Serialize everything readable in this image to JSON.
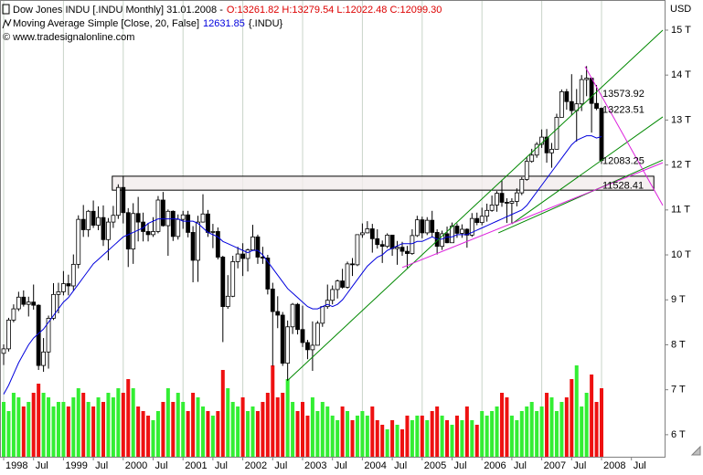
{
  "chart_data": {
    "type": "candlestick",
    "title": "Dow Jones INDU [.INDU Monthly] 31.01.2008 -",
    "title_values": "O:13261.82 H:13279.54 L:12022.48 C:12099.30",
    "source": "© www.tradesignalonline.com",
    "unit": "USD",
    "categories": [
      "1998",
      null,
      null,
      null,
      null,
      null,
      "Jul",
      null,
      null,
      null,
      null,
      null,
      "1999",
      null,
      null,
      null,
      null,
      null,
      "Jul",
      null,
      null,
      null,
      null,
      null,
      "2000",
      null,
      null,
      null,
      null,
      null,
      "Jul",
      null,
      null,
      null,
      null,
      null,
      "2001",
      null,
      null,
      null,
      null,
      null,
      "Jul",
      null,
      null,
      null,
      null,
      null,
      "2002",
      null,
      null,
      null,
      null,
      null,
      "Jul",
      null,
      null,
      null,
      null,
      null,
      "2003",
      null,
      null,
      null,
      null,
      null,
      "Jul",
      null,
      null,
      null,
      null,
      null,
      "2004",
      null,
      null,
      null,
      null,
      null,
      "Jul",
      null,
      null,
      null,
      null,
      null,
      "2005",
      null,
      null,
      null,
      null,
      null,
      "Jul",
      null,
      null,
      null,
      null,
      null,
      "2006",
      null,
      null,
      null,
      null,
      null,
      "Jul",
      null,
      null,
      null,
      null,
      null,
      "2007",
      null,
      null,
      null,
      null,
      null,
      "Jul",
      null,
      null,
      null,
      null,
      null,
      "2008",
      null,
      null,
      null,
      null,
      null,
      "Jul"
    ],
    "open": [
      7.81,
      7.91,
      8.55,
      8.8,
      9.06,
      8.9,
      8.95,
      8.88,
      7.54,
      7.84,
      8.59,
      9.12,
      9.18,
      9.36,
      9.31,
      9.79,
      10.79,
      10.56,
      10.97,
      10.66,
      10.83,
      10.34,
      10.73,
      10.88,
      11.5,
      10.94,
      10.13,
      10.92,
      10.73,
      10.52,
      10.45,
      10.52,
      11.22,
      10.65,
      10.97,
      10.41,
      10.79,
      10.89,
      10.5,
      9.88,
      10.73,
      10.91,
      10.5,
      10.52,
      9.95,
      8.85,
      9.08,
      9.85,
      10.02,
      9.92,
      10.11,
      10.4,
      9.95,
      9.93,
      9.24,
      8.74,
      8.66,
      7.59,
      8.4,
      8.9,
      8.34,
      8.05,
      7.89,
      7.99,
      8.48,
      8.85,
      8.99,
      9.23,
      9.42,
      9.28,
      9.8,
      9.78,
      10.45,
      10.49,
      10.58,
      10.36,
      10.23,
      10.19,
      10.44,
      10.14,
      10.17,
      10.08,
      10.03,
      10.43,
      10.78,
      10.49,
      10.77,
      10.5,
      10.19,
      10.47,
      10.27,
      10.64,
      10.48,
      10.57,
      10.44,
      10.81,
      10.72,
      10.86,
      10.99,
      11.11,
      11.37,
      11.17,
      11.15,
      11.19,
      11.38,
      11.68,
      12.08,
      12.22,
      12.46,
      12.62,
      12.27,
      12.35,
      13.06,
      13.63,
      13.41,
      13.21,
      13.36,
      13.9,
      13.93,
      13.37,
      13.26182,
      null,
      null,
      null,
      null,
      null,
      null
    ],
    "high": [
      8.01,
      8.6,
      8.9,
      9.18,
      9.21,
      9.07,
      9.34,
      8.9,
      8.15,
      8.65,
      9.37,
      9.38,
      9.64,
      9.56,
      10.01,
      10.88,
      11.11,
      11.0,
      11.21,
      11.08,
      11.1,
      10.82,
      11.09,
      11.57,
      11.75,
      11.04,
      11.15,
      11.29,
      10.94,
      10.71,
      10.84,
      11.31,
      11.4,
      11.01,
      10.99,
      10.9,
      10.98,
      10.98,
      10.64,
      10.87,
      11.35,
      11.0,
      10.69,
      10.61,
      9.98,
      9.55,
      9.98,
      10.18,
      10.26,
      10.14,
      10.67,
      10.45,
      10.18,
      10.0,
      9.38,
      9.08,
      8.73,
      8.54,
      8.93,
      8.93,
      8.87,
      8.11,
      8.52,
      8.53,
      8.86,
      9.34,
      9.32,
      9.45,
      9.69,
      9.85,
      9.93,
      10.45,
      10.7,
      10.75,
      10.69,
      10.57,
      10.32,
      10.48,
      10.44,
      10.31,
      10.29,
      10.2,
      10.57,
      10.87,
      10.85,
      10.84,
      10.98,
      10.57,
      10.54,
      10.63,
      10.72,
      10.7,
      10.68,
      10.59,
      10.93,
      10.94,
      11.05,
      11.14,
      11.32,
      11.42,
      11.67,
      11.26,
      11.26,
      11.48,
      11.73,
      12.17,
      12.36,
      12.51,
      12.79,
      12.8,
      12.49,
      13.14,
      13.68,
      13.69,
      14.02,
      13.69,
      14.0,
      14.2,
      13.94,
      13.78,
      13.27954,
      null,
      null,
      null,
      null,
      null,
      null
    ],
    "low": [
      7.55,
      7.85,
      8.5,
      8.75,
      8.85,
      8.63,
      8.78,
      7.44,
      7.4,
      7.47,
      8.55,
      8.7,
      9.1,
      9.1,
      9.21,
      9.7,
      10.4,
      10.4,
      10.6,
      10.55,
      10.2,
      9.88,
      10.6,
      10.8,
      10.7,
      9.73,
      9.8,
      10.3,
      10.3,
      10.3,
      10.4,
      10.48,
      10.63,
      9.98,
      10.31,
      10.34,
      10.58,
      10.39,
      9.39,
      9.4,
      10.72,
      10.4,
      10.15,
      9.9,
      8.06,
      8.8,
      9.06,
      9.7,
      9.53,
      9.63,
      10.1,
      9.8,
      9.8,
      9.12,
      7.53,
      8.37,
      7.53,
      7.2,
      8.24,
      8.23,
      7.95,
      7.68,
      7.42,
      7.99,
      8.4,
      8.8,
      8.9,
      9.03,
      9.25,
      9.25,
      9.53,
      9.75,
      10.38,
      10.48,
      10.05,
      10.14,
      9.82,
      10.15,
      9.98,
      9.78,
      9.98,
      9.71,
      10.0,
      10.4,
      10.37,
      10.44,
      10.4,
      10.01,
      10.11,
      10.26,
      10.27,
      10.38,
      10.38,
      10.16,
      10.4,
      10.66,
      10.66,
      10.74,
      10.96,
      10.96,
      11.07,
      10.71,
      10.7,
      11.08,
      11.33,
      11.65,
      12.05,
      12.16,
      12.38,
      12.05,
      11.94,
      12.35,
      13.06,
      13.23,
      13.11,
      12.52,
      13.2,
      13.53,
      12.72,
      13.22,
      12.02248,
      null,
      null,
      null,
      null,
      null,
      null
    ],
    "close": [
      7.91,
      8.55,
      8.8,
      9.06,
      8.9,
      8.95,
      8.88,
      7.54,
      7.84,
      8.59,
      9.12,
      9.18,
      9.36,
      9.31,
      9.79,
      10.79,
      10.56,
      10.97,
      10.66,
      10.83,
      10.34,
      10.73,
      10.88,
      11.5,
      10.94,
      10.13,
      10.92,
      10.73,
      10.52,
      10.45,
      10.52,
      11.22,
      10.65,
      10.97,
      10.41,
      10.79,
      10.89,
      10.5,
      9.88,
      10.73,
      10.91,
      10.5,
      10.52,
      9.95,
      8.85,
      9.08,
      9.85,
      10.02,
      9.92,
      10.11,
      10.4,
      9.95,
      9.93,
      9.24,
      8.74,
      8.66,
      7.59,
      8.4,
      8.9,
      8.34,
      8.05,
      7.89,
      7.99,
      8.48,
      8.85,
      8.99,
      9.23,
      9.42,
      9.28,
      9.8,
      9.78,
      10.45,
      10.49,
      10.58,
      10.36,
      10.23,
      10.19,
      10.44,
      10.14,
      10.17,
      10.08,
      10.03,
      10.43,
      10.78,
      10.49,
      10.77,
      10.5,
      10.19,
      10.47,
      10.27,
      10.64,
      10.48,
      10.57,
      10.44,
      10.81,
      10.72,
      10.86,
      10.99,
      11.11,
      11.37,
      11.17,
      11.15,
      11.19,
      11.38,
      11.68,
      12.08,
      12.22,
      12.46,
      12.62,
      12.27,
      12.35,
      13.06,
      13.63,
      13.41,
      13.21,
      13.36,
      13.9,
      13.93,
      13.37,
      13.26,
      12.0993,
      null,
      null,
      null,
      null,
      null,
      null
    ],
    "up_color": "#ffffff",
    "down_color": "#000000",
    "ma": {
      "name": "Moving Average Simple [Close, 20, False]",
      "last_label": "12631.85",
      "symbol": "{.INDU}",
      "color": "#0000dd",
      "values": [
        6.9,
        7.1,
        7.35,
        7.6,
        7.8,
        8.0,
        8.15,
        8.25,
        8.35,
        8.5,
        8.65,
        8.8,
        8.95,
        9.05,
        9.2,
        9.35,
        9.5,
        9.65,
        9.8,
        9.9,
        10.0,
        10.1,
        10.2,
        10.3,
        10.4,
        10.45,
        10.5,
        10.55,
        10.6,
        10.7,
        10.75,
        10.8,
        10.8,
        10.8,
        10.8,
        10.8,
        10.75,
        10.75,
        10.75,
        10.7,
        10.6,
        10.5,
        10.45,
        10.4,
        10.3,
        10.25,
        10.2,
        10.15,
        10.1,
        10.05,
        10.1,
        10.1,
        10.0,
        9.85,
        9.7,
        9.55,
        9.4,
        9.25,
        9.15,
        9.05,
        8.95,
        8.85,
        8.8,
        8.8,
        8.85,
        8.9,
        8.85,
        8.9,
        9.0,
        9.15,
        9.3,
        9.45,
        9.6,
        9.75,
        9.85,
        9.95,
        10.0,
        10.1,
        10.15,
        10.2,
        10.25,
        10.25,
        10.25,
        10.3,
        10.3,
        10.35,
        10.4,
        10.35,
        10.35,
        10.4,
        10.4,
        10.45,
        10.45,
        10.45,
        10.5,
        10.55,
        10.6,
        10.65,
        10.7,
        10.75,
        10.8,
        10.85,
        10.9,
        10.95,
        11.0,
        11.1,
        11.25,
        11.4,
        11.55,
        11.7,
        11.85,
        12.0,
        12.15,
        12.3,
        12.45,
        12.55,
        12.6,
        12.65,
        12.65,
        12.6,
        12.63185,
        null,
        null,
        null,
        null,
        null,
        null
      ]
    },
    "volume": {
      "axis": "y2",
      "up_color": "#33ee33",
      "down_color": "#ee1111",
      "values": [
        12,
        10,
        14,
        13,
        11,
        12,
        14,
        16,
        14,
        13,
        11,
        12,
        12,
        11,
        13,
        15,
        14,
        12,
        11,
        13,
        12,
        14,
        13,
        15,
        14,
        17,
        15,
        11,
        10,
        9,
        8,
        10,
        12,
        15,
        12,
        14,
        12,
        10,
        14,
        13,
        11,
        10,
        9,
        10,
        19,
        15,
        12,
        11,
        13,
        10,
        11,
        10,
        12,
        14,
        20,
        13,
        14,
        17,
        12,
        10,
        12,
        9,
        13,
        10,
        12,
        11,
        9,
        8,
        11,
        10,
        8,
        9,
        10,
        9,
        11,
        8,
        7,
        6,
        8,
        7,
        6,
        9,
        8,
        9,
        9,
        8,
        10,
        11,
        9,
        8,
        7,
        9,
        8,
        11,
        8,
        7,
        10,
        9,
        10,
        11,
        14,
        13,
        9,
        8,
        10,
        11,
        12,
        10,
        11,
        14,
        13,
        10,
        12,
        13,
        17,
        20,
        11,
        14,
        18,
        12,
        15,
        null,
        null,
        null,
        null,
        null,
        null
      ]
    },
    "ylim": [
      5.51,
      15.67
    ],
    "y2lim": [
      0,
      100
    ],
    "yticks": [
      {
        "value": 15,
        "label": "15 T"
      },
      {
        "value": 14,
        "label": "14 T"
      },
      {
        "value": 13,
        "label": "13 T"
      },
      {
        "value": 12,
        "label": "12 T"
      },
      {
        "value": 11,
        "label": "11 T"
      },
      {
        "value": 10,
        "label": "10 T"
      },
      {
        "value": 9,
        "label": "9 T"
      },
      {
        "value": 8,
        "label": "8 T"
      },
      {
        "value": 7,
        "label": "7 T"
      },
      {
        "value": 6,
        "label": "6 T"
      }
    ],
    "zone": {
      "x": [
        21.8,
        130.5
      ],
      "y": [
        11.44,
        11.75
      ],
      "color": "#f3ecec"
    },
    "trendlines": [
      {
        "color": "#008800",
        "x": [
          57.1,
          132.3
        ],
        "y": [
          7.22,
          15.0
        ]
      },
      {
        "color": "#008800",
        "x": [
          102.0,
          132.3
        ],
        "y": [
          10.69,
          13.07
        ]
      },
      {
        "color": "#008800",
        "x": [
          99.3,
          132.3
        ],
        "y": [
          10.49,
          12.11
        ]
      },
      {
        "color": "#dd22dd",
        "x": [
          80.0,
          132.3
        ],
        "y": [
          9.72,
          12.05
        ]
      },
      {
        "color": "#dd22dd",
        "x": [
          116.7,
          132.3
        ],
        "y": [
          14.19,
          11.1
        ]
      }
    ],
    "levels": [
      {
        "value": 13.57392,
        "label": "13573.92",
        "color": "#cc33cc"
      },
      {
        "value": 13.22351,
        "label": "13223.51",
        "color": "#228822"
      },
      {
        "value": 12.08325,
        "label": "12083.25",
        "color": "#228822"
      },
      {
        "value": 11.52841,
        "label": "11528.41",
        "color": "#cc33cc"
      }
    ]
  }
}
